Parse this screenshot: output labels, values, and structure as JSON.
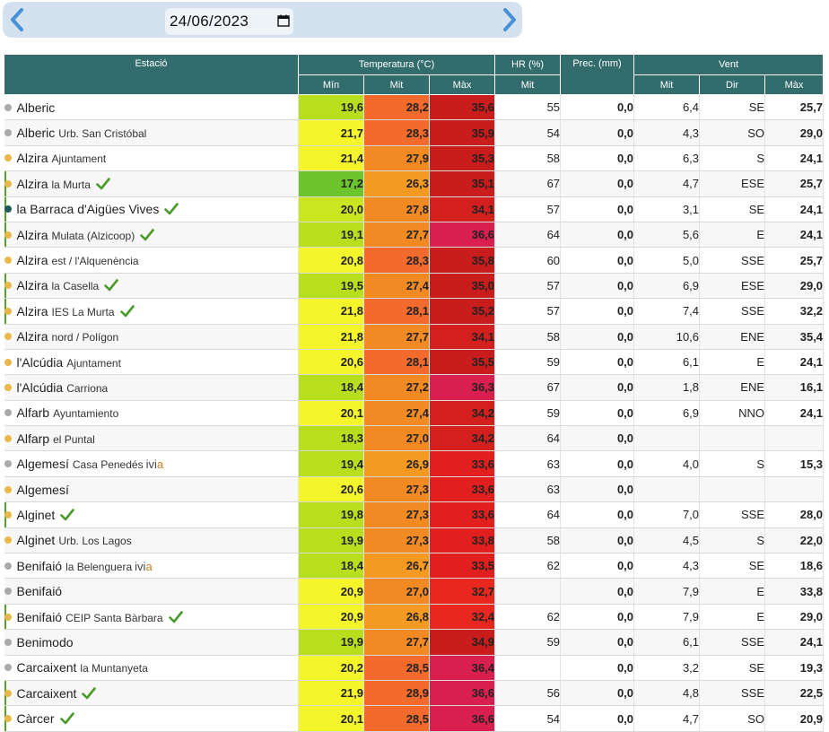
{
  "date_picker": {
    "value": "24/06/2023",
    "icon": "calendar-icon"
  },
  "nav": {
    "prev_icon": "chevron-left-icon",
    "next_icon": "chevron-right-icon"
  },
  "colors": {
    "header_bg": "#326c6c",
    "nav_bg": "#d3e2ee",
    "chevron": "#4a90d9",
    "check": "#4a9a2a"
  },
  "table": {
    "headers": {
      "station": "Estació",
      "temperature": "Temperatura (°C)",
      "hr": "HR (%)",
      "prec": "Prec. (mm)",
      "wind": "Vent",
      "t_min": "Mín",
      "t_mit": "Mit",
      "t_max": "Màx",
      "hr_mit": "Mit",
      "w_mit": "Mit",
      "w_dir": "Dir",
      "w_max": "Màx"
    },
    "rows": [
      {
        "name": "Alberic",
        "sub": "",
        "dot": "#a9a9a9",
        "check": false,
        "ivia": false,
        "mark": false,
        "min": "19,6",
        "minc": "#b7df1e",
        "mit": "28,2",
        "mitc": "#f26a2c",
        "max": "35,6",
        "maxc": "#c91c1c",
        "hr": "55",
        "prec": "0,0",
        "wmit": "6,4",
        "wdir": "SE",
        "wmax": "25,7"
      },
      {
        "name": "Alberic",
        "sub": "Urb. San Cristóbal",
        "dot": "#a9a9a9",
        "check": false,
        "ivia": false,
        "mark": false,
        "min": "21,7",
        "minc": "#f5f52b",
        "mit": "28,3",
        "mitc": "#f26a2c",
        "max": "35,9",
        "maxc": "#c91c1c",
        "hr": "54",
        "prec": "0,0",
        "wmit": "4,3",
        "wdir": "SO",
        "wmax": "29,0"
      },
      {
        "name": "Alzira",
        "sub": "Ajuntament",
        "dot": "#e8b84a",
        "check": false,
        "ivia": false,
        "mark": false,
        "min": "21,4",
        "minc": "#f5f52b",
        "mit": "27,9",
        "mitc": "#f28a24",
        "max": "35,3",
        "maxc": "#c91c1c",
        "hr": "58",
        "prec": "0,0",
        "wmit": "6,3",
        "wdir": "S",
        "wmax": "24,1"
      },
      {
        "name": "Alzira",
        "sub": "la Murta",
        "dot": "#e8b84a",
        "check": true,
        "ivia": false,
        "mark": true,
        "min": "17,2",
        "minc": "#6cc52a",
        "mit": "26,3",
        "mitc": "#f49a22",
        "max": "35,1",
        "maxc": "#c91c1c",
        "hr": "67",
        "prec": "0,0",
        "wmit": "4,7",
        "wdir": "ESE",
        "wmax": "25,7"
      },
      {
        "name": "la Barraca d'Aigües Vives",
        "sub": "",
        "dot": "#1e5b5b",
        "check": true,
        "ivia": false,
        "mark": true,
        "min": "20,0",
        "minc": "#c9e61f",
        "mit": "27,8",
        "mitc": "#f28a24",
        "max": "34,1",
        "maxc": "#d41f1f",
        "hr": "57",
        "prec": "0,0",
        "wmit": "3,1",
        "wdir": "SE",
        "wmax": "24,1"
      },
      {
        "name": "Alzira",
        "sub": "Mulata (Alzicoop)",
        "dot": "#e8b84a",
        "check": true,
        "ivia": false,
        "mark": true,
        "min": "19,1",
        "minc": "#b7df1e",
        "mit": "27,7",
        "mitc": "#f28a24",
        "max": "36,6",
        "maxc": "#d91f4f",
        "hr": "64",
        "prec": "0,0",
        "wmit": "5,6",
        "wdir": "E",
        "wmax": "24,1"
      },
      {
        "name": "Alzira",
        "sub": "est / l'Alquenència",
        "dot": "#e8b84a",
        "check": false,
        "ivia": false,
        "mark": false,
        "min": "20,8",
        "minc": "#f5f52b",
        "mit": "28,3",
        "mitc": "#f26a2c",
        "max": "35,8",
        "maxc": "#c91c1c",
        "hr": "60",
        "prec": "0,0",
        "wmit": "5,0",
        "wdir": "SSE",
        "wmax": "25,7"
      },
      {
        "name": "Alzira",
        "sub": "la Casella",
        "dot": "#e8b84a",
        "check": true,
        "ivia": false,
        "mark": true,
        "min": "19,5",
        "minc": "#b7df1e",
        "mit": "27,4",
        "mitc": "#f28a24",
        "max": "35,0",
        "maxc": "#c91c1c",
        "hr": "57",
        "prec": "0,0",
        "wmit": "6,9",
        "wdir": "ESE",
        "wmax": "29,0"
      },
      {
        "name": "Alzira",
        "sub": "IES La Murta",
        "dot": "#e8b84a",
        "check": true,
        "ivia": false,
        "mark": true,
        "min": "21,8",
        "minc": "#f5f52b",
        "mit": "28,1",
        "mitc": "#f26a2c",
        "max": "35,2",
        "maxc": "#c91c1c",
        "hr": "57",
        "prec": "0,0",
        "wmit": "7,4",
        "wdir": "SSE",
        "wmax": "32,2"
      },
      {
        "name": "Alzira",
        "sub": "nord / Polígon",
        "dot": "#e8b84a",
        "check": false,
        "ivia": false,
        "mark": false,
        "min": "21,8",
        "minc": "#f5f52b",
        "mit": "27,7",
        "mitc": "#f28a24",
        "max": "34,1",
        "maxc": "#d41f1f",
        "hr": "58",
        "prec": "0,0",
        "wmit": "10,6",
        "wdir": "ENE",
        "wmax": "35,4"
      },
      {
        "name": "l'Alcúdia",
        "sub": "Ajuntament",
        "dot": "#e8b84a",
        "check": false,
        "ivia": false,
        "mark": false,
        "min": "20,6",
        "minc": "#f5f52b",
        "mit": "28,1",
        "mitc": "#f26a2c",
        "max": "35,5",
        "maxc": "#c91c1c",
        "hr": "59",
        "prec": "0,0",
        "wmit": "6,1",
        "wdir": "E",
        "wmax": "24,1"
      },
      {
        "name": "l'Alcúdia",
        "sub": "Carriona",
        "dot": "#e8b84a",
        "check": false,
        "ivia": false,
        "mark": false,
        "min": "18,4",
        "minc": "#b7df1e",
        "mit": "27,2",
        "mitc": "#f28a24",
        "max": "36,3",
        "maxc": "#d91f4f",
        "hr": "67",
        "prec": "0,0",
        "wmit": "1,8",
        "wdir": "ENE",
        "wmax": "16,1"
      },
      {
        "name": "Alfarb",
        "sub": "Ayuntamiento",
        "dot": "#a9a9a9",
        "check": false,
        "ivia": false,
        "mark": false,
        "min": "20,1",
        "minc": "#f5f52b",
        "mit": "27,4",
        "mitc": "#f28a24",
        "max": "34,2",
        "maxc": "#d41f1f",
        "hr": "59",
        "prec": "0,0",
        "wmit": "6,9",
        "wdir": "NNO",
        "wmax": "24,1"
      },
      {
        "name": "Alfarp",
        "sub": "el Puntal",
        "dot": "#e8b84a",
        "check": false,
        "ivia": false,
        "mark": false,
        "min": "18,3",
        "minc": "#b7df1e",
        "mit": "27,0",
        "mitc": "#f28a24",
        "max": "34,2",
        "maxc": "#d41f1f",
        "hr": "64",
        "prec": "0,0",
        "wmit": "",
        "wdir": "",
        "wmax": ""
      },
      {
        "name": "Algemesí",
        "sub": "Casa Penedés",
        "dot": "#a9a9a9",
        "check": false,
        "ivia": true,
        "mark": false,
        "min": "19,4",
        "minc": "#b7df1e",
        "mit": "26,9",
        "mitc": "#f49a22",
        "max": "33,6",
        "maxc": "#e21f1f",
        "hr": "63",
        "prec": "0,0",
        "wmit": "4,0",
        "wdir": "S",
        "wmax": "15,3"
      },
      {
        "name": "Algemesí",
        "sub": "",
        "dot": "#e8b84a",
        "check": false,
        "ivia": false,
        "mark": false,
        "min": "20,6",
        "minc": "#f5f52b",
        "mit": "27,3",
        "mitc": "#f28a24",
        "max": "33,6",
        "maxc": "#e21f1f",
        "hr": "63",
        "prec": "0,0",
        "wmit": "",
        "wdir": "",
        "wmax": ""
      },
      {
        "name": "Alginet",
        "sub": "",
        "dot": "#e8b84a",
        "check": true,
        "ivia": false,
        "mark": true,
        "min": "19,8",
        "minc": "#b7df1e",
        "mit": "27,3",
        "mitc": "#f28a24",
        "max": "33,6",
        "maxc": "#e21f1f",
        "hr": "64",
        "prec": "0,0",
        "wmit": "7,0",
        "wdir": "SSE",
        "wmax": "28,0"
      },
      {
        "name": "Alginet",
        "sub": "Urb. Los Lagos",
        "dot": "#e8b84a",
        "check": false,
        "ivia": false,
        "mark": false,
        "min": "19,9",
        "minc": "#b7df1e",
        "mit": "27,3",
        "mitc": "#f28a24",
        "max": "33,8",
        "maxc": "#e21f1f",
        "hr": "58",
        "prec": "0,0",
        "wmit": "4,5",
        "wdir": "S",
        "wmax": "22,0"
      },
      {
        "name": "Benifaió",
        "sub": "la Belenguera",
        "dot": "#a9a9a9",
        "check": false,
        "ivia": true,
        "mark": false,
        "min": "18,4",
        "minc": "#b7df1e",
        "mit": "26,7",
        "mitc": "#f49a22",
        "max": "33,5",
        "maxc": "#e21f1f",
        "hr": "62",
        "prec": "0,0",
        "wmit": "4,3",
        "wdir": "SE",
        "wmax": "18,6"
      },
      {
        "name": "Benifaió",
        "sub": "",
        "dot": "#a9a9a9",
        "check": false,
        "ivia": false,
        "mark": false,
        "min": "20,9",
        "minc": "#f5f52b",
        "mit": "27,0",
        "mitc": "#f28a24",
        "max": "32,7",
        "maxc": "#e8281f",
        "hr": "",
        "prec": "0,0",
        "wmit": "7,9",
        "wdir": "E",
        "wmax": "33,8"
      },
      {
        "name": "Benifaió",
        "sub": "CEIP Santa Bàrbara",
        "dot": "#e8b84a",
        "check": true,
        "ivia": false,
        "mark": true,
        "min": "20,9",
        "minc": "#f5f52b",
        "mit": "26,8",
        "mitc": "#f49a22",
        "max": "32,4",
        "maxc": "#e8281f",
        "hr": "62",
        "prec": "0,0",
        "wmit": "7,9",
        "wdir": "E",
        "wmax": "29,0"
      },
      {
        "name": "Benimodo",
        "sub": "",
        "dot": "#a9a9a9",
        "check": false,
        "ivia": false,
        "mark": false,
        "min": "19,9",
        "minc": "#b7df1e",
        "mit": "27,7",
        "mitc": "#f28a24",
        "max": "34,9",
        "maxc": "#c91c1c",
        "hr": "59",
        "prec": "0,0",
        "wmit": "6,1",
        "wdir": "SSE",
        "wmax": "24,1"
      },
      {
        "name": "Carcaixent",
        "sub": "la Muntanyeta",
        "dot": "#a9a9a9",
        "check": false,
        "ivia": false,
        "mark": false,
        "min": "20,2",
        "minc": "#f5f52b",
        "mit": "28,5",
        "mitc": "#f26a2c",
        "max": "36,4",
        "maxc": "#d91f4f",
        "hr": "",
        "prec": "0,0",
        "wmit": "3,2",
        "wdir": "SE",
        "wmax": "19,3"
      },
      {
        "name": "Carcaixent",
        "sub": "",
        "dot": "#e8b84a",
        "check": true,
        "ivia": false,
        "mark": true,
        "min": "21,9",
        "minc": "#f5f52b",
        "mit": "28,9",
        "mitc": "#f26a2c",
        "max": "36,6",
        "maxc": "#d91f4f",
        "hr": "56",
        "prec": "0,0",
        "wmit": "4,8",
        "wdir": "SSE",
        "wmax": "22,5"
      },
      {
        "name": "Càrcer",
        "sub": "",
        "dot": "#e8b84a",
        "check": true,
        "ivia": false,
        "mark": true,
        "min": "20,1",
        "minc": "#f5f52b",
        "mit": "28,5",
        "mitc": "#f26a2c",
        "max": "36,6",
        "maxc": "#d91f4f",
        "hr": "54",
        "prec": "0,0",
        "wmit": "4,7",
        "wdir": "SO",
        "wmax": "20,9"
      }
    ],
    "ivia_text": {
      "a": "ivi",
      "b": "a"
    }
  }
}
